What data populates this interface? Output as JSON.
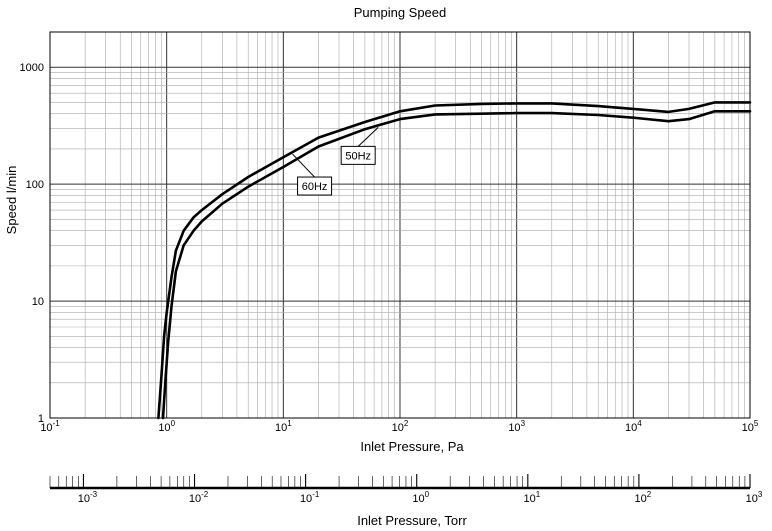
{
  "chart_data": {
    "type": "line",
    "title": "Pumping Speed",
    "xlabel": "Inlet Pressure, Pa",
    "ylabel": "Speed l/min",
    "x_scale": "log",
    "y_scale": "log",
    "xlim": [
      0.1,
      100000
    ],
    "ylim": [
      1,
      2000
    ],
    "grid": true,
    "x_ticks": [
      {
        "base": "10",
        "exp": "-1"
      },
      {
        "base": "10",
        "exp": "0"
      },
      {
        "base": "10",
        "exp": "1"
      },
      {
        "base": "10",
        "exp": "2"
      },
      {
        "base": "10",
        "exp": "3"
      },
      {
        "base": "10",
        "exp": "4"
      },
      {
        "base": "10",
        "exp": "5"
      }
    ],
    "y_ticks": [
      "1",
      "10",
      "100",
      "1000"
    ],
    "secondary_axis": {
      "label": "Inlet Pressure, Torr",
      "xlim": [
        0.0005,
        1000
      ],
      "ticks": [
        {
          "base": "10",
          "exp": "-3"
        },
        {
          "base": "10",
          "exp": "-2"
        },
        {
          "base": "10",
          "exp": "-1"
        },
        {
          "base": "10",
          "exp": "0"
        },
        {
          "base": "10",
          "exp": "1"
        },
        {
          "base": "10",
          "exp": "2"
        },
        {
          "base": "10",
          "exp": "3"
        }
      ]
    },
    "series": [
      {
        "name": "60Hz",
        "x": [
          0.85,
          0.9,
          0.95,
          1.0,
          1.1,
          1.2,
          1.4,
          1.7,
          2.0,
          3.0,
          5.0,
          10,
          20,
          50,
          100,
          200,
          500,
          1000,
          2000,
          5000,
          10000,
          20000,
          30000,
          50000,
          100000
        ],
        "y": [
          1.0,
          2.2,
          5.0,
          8.0,
          16,
          27,
          40,
          52,
          60,
          82,
          115,
          170,
          250,
          340,
          420,
          470,
          485,
          490,
          490,
          465,
          440,
          415,
          440,
          500,
          500
        ]
      },
      {
        "name": "50Hz",
        "x": [
          0.93,
          0.98,
          1.03,
          1.1,
          1.2,
          1.4,
          1.7,
          2.0,
          3.0,
          5.0,
          10,
          20,
          50,
          100,
          200,
          500,
          1000,
          2000,
          5000,
          10000,
          20000,
          30000,
          50000,
          100000
        ],
        "y": [
          1.0,
          2.2,
          4.5,
          9,
          18,
          30,
          40,
          48,
          68,
          95,
          140,
          210,
          295,
          360,
          395,
          400,
          405,
          405,
          390,
          370,
          345,
          360,
          420,
          420
        ]
      }
    ],
    "annotations": [
      {
        "text": "60Hz",
        "series": "60Hz",
        "x": 12
      },
      {
        "text": "50Hz",
        "series": "50Hz",
        "x": 65
      }
    ]
  }
}
